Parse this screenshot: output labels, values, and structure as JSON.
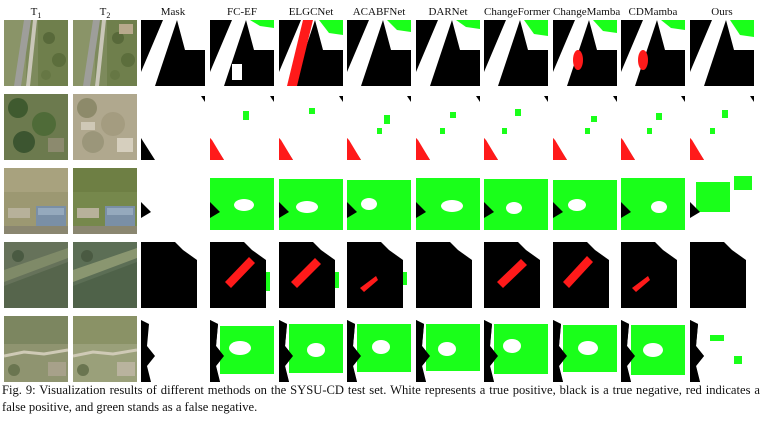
{
  "headers": [
    "T1",
    "T2",
    "Mask",
    "FC-EF",
    "ELGCNet",
    "ACABFNet",
    "DARNet",
    "ChangeFormer",
    "ChangeMamba",
    "CDMamba",
    "Ours"
  ],
  "caption": "Fig. 9: Visualization results of different methods on the SYSU-CD test set. White represents a true positive, black is a true negative, red indicates a false positive, and green stands as a false negative.",
  "colors": {
    "true_positive": "#ffffff",
    "true_negative": "#000000",
    "false_positive": "#ff1a1a",
    "false_negative": "#1aff1a"
  },
  "rows": [
    {
      "image_icons": [
        "aerial-photo-road-vegetation",
        "aerial-photo-road-vegetation"
      ]
    },
    {
      "image_icons": [
        "aerial-photo-trees-construction",
        "aerial-photo-construction-site"
      ]
    },
    {
      "image_icons": [
        "aerial-photo-field-buildings",
        "aerial-photo-field-buildings"
      ]
    },
    {
      "image_icons": [
        "aerial-photo-grassland",
        "aerial-photo-grassland"
      ]
    },
    {
      "image_icons": [
        "aerial-photo-field-road",
        "aerial-photo-field-road"
      ]
    }
  ]
}
